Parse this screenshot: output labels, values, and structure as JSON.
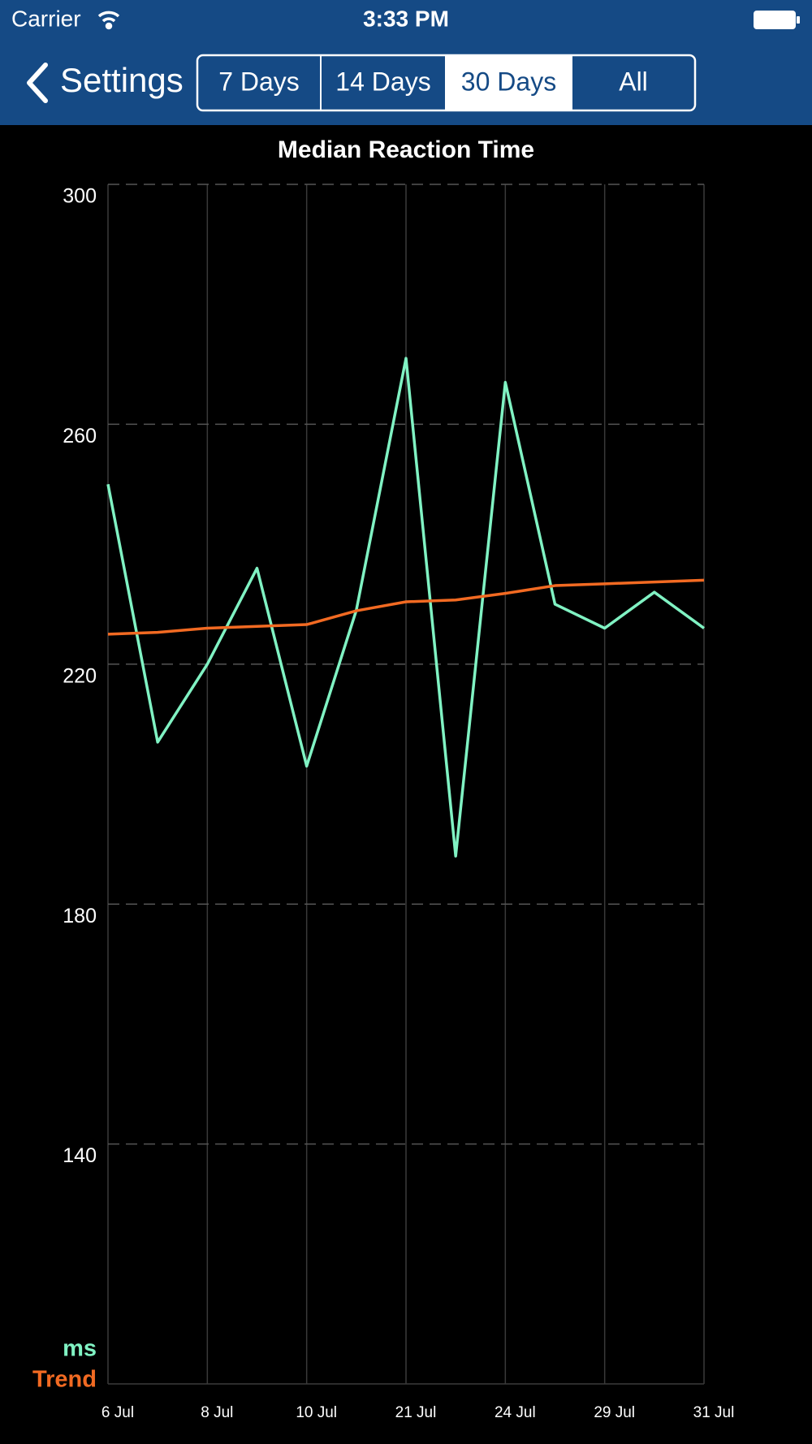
{
  "status_bar": {
    "carrier": "Carrier",
    "time": "3:33 PM"
  },
  "nav": {
    "back": "Settings",
    "segments": [
      "7 Days",
      "14 Days",
      "30 Days",
      "All"
    ],
    "selected": 2
  },
  "chart_data": {
    "type": "line",
    "title": "Median Reaction Time",
    "categories": [
      "6 Jul",
      null,
      "8 Jul",
      null,
      "10 Jul",
      null,
      "21 Jul",
      null,
      "24 Jul",
      null,
      "29 Jul",
      null,
      "31 Jul"
    ],
    "series": [
      {
        "name": "ms",
        "color": "#80f2c3",
        "values": [
          250,
          207,
          220,
          236,
          203,
          229,
          271,
          188,
          267,
          230,
          226,
          232,
          226
        ]
      },
      {
        "name": "Trend",
        "color": "#f26a22",
        "values": [
          225,
          225.3,
          226,
          226.3,
          226.6,
          228.9,
          230.4,
          230.7,
          231.8,
          233.1,
          233.4,
          233.7,
          234
        ]
      }
    ],
    "ylim": [
      100,
      300
    ],
    "yticks": [
      140,
      180,
      220,
      260,
      300
    ],
    "grid": true
  }
}
